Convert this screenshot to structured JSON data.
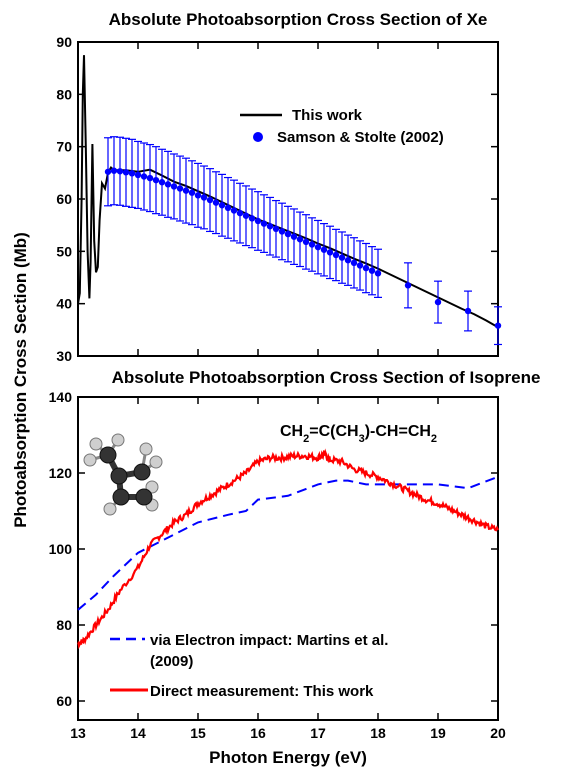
{
  "chart_data": [
    {
      "type": "line",
      "title": "Absolute Photoabsorption Cross Section of Xe",
      "xlim": [
        13,
        20
      ],
      "ylim": [
        30,
        90
      ],
      "yticks": [
        30,
        40,
        50,
        60,
        70,
        80,
        90
      ],
      "grid": false,
      "legend_position": "top-right",
      "series": [
        {
          "name": "This work",
          "color": "#000000",
          "style": "line",
          "x": [
            13.0,
            13.03,
            13.06,
            13.08,
            13.1,
            13.13,
            13.16,
            13.19,
            13.21,
            13.24,
            13.27,
            13.3,
            13.33,
            13.36,
            13.4,
            13.45,
            13.5,
            13.55,
            13.6,
            13.8,
            14.0,
            14.2,
            14.4,
            14.6,
            14.8,
            15.0,
            15.2,
            15.4,
            15.6,
            15.8,
            16.0,
            16.2,
            16.4,
            16.6,
            16.8,
            17.0,
            17.2,
            17.4,
            17.6,
            17.8,
            18.0,
            18.2,
            18.4,
            18.6,
            18.8,
            19.0,
            19.2,
            19.4,
            19.6,
            19.8,
            20.0
          ],
          "y": [
            40,
            42,
            60,
            80,
            87.5,
            70,
            50,
            41,
            48,
            70.5,
            52,
            46,
            47,
            56,
            63,
            62,
            65,
            66,
            65.5,
            65.5,
            65.2,
            65.6,
            64.5,
            63.3,
            62.5,
            61.5,
            60.5,
            59.4,
            58.3,
            57.2,
            56.1,
            55.2,
            54.3,
            53.4,
            52.5,
            51.5,
            50.6,
            49.6,
            48.6,
            47.7,
            46.7,
            45.6,
            44.5,
            43.4,
            42.3,
            41.2,
            40.1,
            39.0,
            38.0,
            36.8,
            35.5
          ]
        },
        {
          "name": "Samson & Stolte (2002)",
          "color": "#0000ff",
          "style": "scatter-errorbar",
          "x": [
            13.5,
            13.6,
            13.7,
            13.8,
            13.9,
            14.0,
            14.1,
            14.2,
            14.3,
            14.4,
            14.5,
            14.6,
            14.7,
            14.8,
            14.9,
            15.0,
            15.1,
            15.2,
            15.3,
            15.4,
            15.5,
            15.6,
            15.7,
            15.8,
            15.9,
            16.0,
            16.1,
            16.2,
            16.3,
            16.4,
            16.5,
            16.6,
            16.7,
            16.8,
            16.9,
            17.0,
            17.1,
            17.2,
            17.3,
            17.4,
            17.5,
            17.6,
            17.7,
            17.8,
            17.9,
            18.0,
            18.5,
            19.0,
            19.5,
            20.0
          ],
          "y": [
            65.2,
            65.4,
            65.3,
            65.1,
            64.9,
            64.6,
            64.3,
            64.0,
            63.6,
            63.2,
            62.8,
            62.4,
            62.0,
            61.6,
            61.2,
            60.7,
            60.3,
            59.8,
            59.3,
            58.8,
            58.3,
            57.8,
            57.3,
            56.8,
            56.3,
            55.8,
            55.3,
            54.8,
            54.3,
            53.8,
            53.3,
            52.8,
            52.3,
            51.8,
            51.3,
            50.8,
            50.3,
            49.8,
            49.3,
            48.8,
            48.3,
            47.8,
            47.3,
            46.8,
            46.3,
            45.8,
            43.5,
            40.3,
            38.6,
            35.8
          ],
          "error": [
            6.5,
            6.5,
            6.5,
            6.5,
            6.5,
            6.4,
            6.4,
            6.4,
            6.4,
            6.3,
            6.3,
            6.2,
            6.2,
            6.2,
            6.1,
            6.1,
            6.0,
            6.0,
            5.9,
            5.9,
            5.8,
            5.8,
            5.7,
            5.7,
            5.6,
            5.6,
            5.5,
            5.5,
            5.4,
            5.4,
            5.3,
            5.3,
            5.2,
            5.2,
            5.1,
            5.1,
            5.0,
            5.0,
            4.9,
            4.9,
            4.8,
            4.8,
            4.7,
            4.7,
            4.6,
            4.6,
            4.3,
            4.0,
            3.8,
            3.6
          ]
        }
      ]
    },
    {
      "type": "line",
      "title": "Absolute Photoabsorption Cross Section of Isoprene",
      "xlabel": "Photon Energy (eV)",
      "xlim": [
        13,
        20
      ],
      "ylim": [
        55,
        140
      ],
      "xticks": [
        13,
        14,
        15,
        16,
        17,
        18,
        19,
        20
      ],
      "yticks": [
        60,
        80,
        100,
        120,
        140
      ],
      "grid": false,
      "legend_position": "bottom-left",
      "annotation": {
        "parts": [
          {
            "t": "CH",
            "sub": false
          },
          {
            "t": "2",
            "sub": true
          },
          {
            "t": "=C(CH",
            "sub": false
          },
          {
            "t": "3",
            "sub": true
          },
          {
            "t": ")-CH=CH",
            "sub": false
          },
          {
            "t": "2",
            "sub": true
          }
        ]
      },
      "molecule_icon": "isoprene-ball-and-stick",
      "series": [
        {
          "name": "via Electron impact: Martins et al.",
          "name_line2": "(2009)",
          "color": "#0000ff",
          "style": "dashed",
          "x": [
            13.0,
            13.3,
            13.6,
            14.0,
            14.5,
            15.0,
            15.5,
            15.8,
            16.0,
            16.5,
            17.0,
            17.3,
            17.5,
            17.8,
            18.0,
            18.5,
            19.0,
            19.5,
            20.0
          ],
          "y": [
            84,
            88,
            93,
            99,
            103,
            107,
            109,
            110,
            113,
            114,
            117,
            118,
            118,
            117,
            117,
            117,
            117,
            116,
            119
          ]
        },
        {
          "name": "Direct measurement: This work",
          "color": "#ff0000",
          "style": "solid",
          "x": [
            13.0,
            13.1,
            13.3,
            13.5,
            13.7,
            14.0,
            14.2,
            14.4,
            14.6,
            14.8,
            15.0,
            15.2,
            15.4,
            15.6,
            15.8,
            16.0,
            16.2,
            16.4,
            16.6,
            16.8,
            17.0,
            17.1,
            17.2,
            17.4,
            17.6,
            17.8,
            18.0,
            18.2,
            18.4,
            18.6,
            18.8,
            19.0,
            19.2,
            19.4,
            19.6,
            19.8,
            20.0
          ],
          "y": [
            75,
            76,
            80,
            84,
            89,
            95,
            101,
            104,
            107,
            109,
            112,
            114,
            116,
            118,
            120,
            123,
            124,
            124,
            124.5,
            124.5,
            124,
            125,
            123.5,
            123,
            121,
            120,
            119,
            117.5,
            116,
            114.5,
            113,
            112,
            110.5,
            109,
            107.5,
            106,
            105
          ]
        }
      ]
    }
  ],
  "shared": {
    "ylabel": "Photoabsorption Cross Section (Mb)"
  }
}
